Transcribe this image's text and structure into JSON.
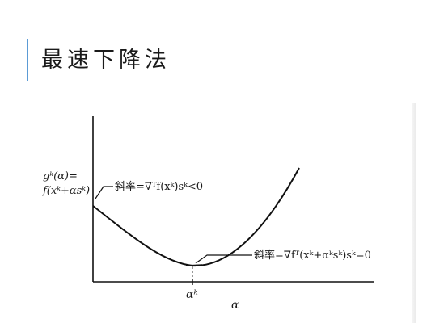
{
  "slide": {
    "title": "最速下降法"
  },
  "diagram": {
    "function_label_line1": "gᵏ(α)=",
    "function_label_line2": "f(xᵏ+αsᵏ)",
    "slope_start_label": "斜率=∇ᵀf(xᵏ)sᵏ<0",
    "slope_min_label": "斜率=∇fᵀ(xᵏ+αᵏsᵏ)sᵏ=0",
    "minimizer_tick_label": "αᵏ",
    "x_axis_label": "α"
  }
}
